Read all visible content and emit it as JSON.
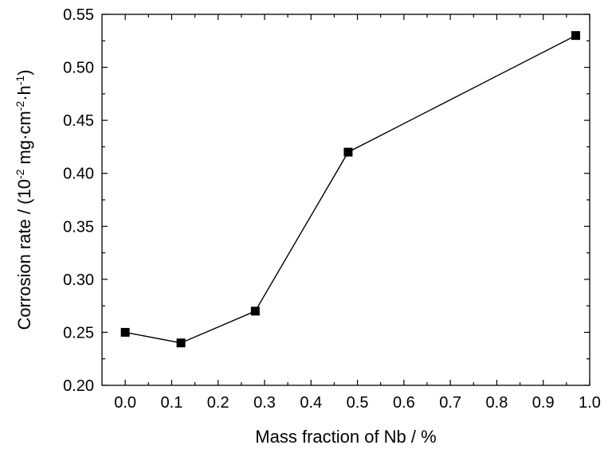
{
  "chart_data": {
    "type": "line",
    "title": "",
    "xlabel": "Mass fraction of Nb / %",
    "ylabel": {
      "prefix": "Corrosion rate / (10",
      "exp1": "-2",
      "middle1": " mg·cm",
      "exp2": "-2",
      "middle2": "·h",
      "exp3": "-1",
      "suffix": ")"
    },
    "xlim": [
      -0.05,
      1.0
    ],
    "ylim": [
      0.2,
      0.55
    ],
    "xticks": [
      "0.0",
      "0.1",
      "0.2",
      "0.3",
      "0.4",
      "0.5",
      "0.6",
      "0.7",
      "0.8",
      "0.9",
      "1.0"
    ],
    "yticks": [
      "0.20",
      "0.25",
      "0.30",
      "0.35",
      "0.40",
      "0.45",
      "0.50",
      "0.55"
    ],
    "grid": false,
    "legend": false,
    "series": [
      {
        "marker": "square",
        "color": "#000000",
        "x": [
          0.0,
          0.12,
          0.28,
          0.48,
          0.97
        ],
        "y": [
          0.25,
          0.24,
          0.27,
          0.42,
          0.53
        ]
      }
    ]
  }
}
